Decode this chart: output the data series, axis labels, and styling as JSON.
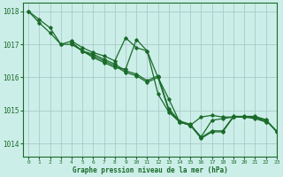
{
  "title": "Graphe pression niveau de la mer (hPa)",
  "background_color": "#cceee8",
  "grid_color": "#aaccc8",
  "line_color": "#1a6b2a",
  "xlim": [
    -0.5,
    23
  ],
  "ylim": [
    1013.6,
    1018.25
  ],
  "yticks": [
    1014,
    1015,
    1016,
    1017,
    1018
  ],
  "xticks": [
    0,
    1,
    2,
    3,
    4,
    5,
    6,
    7,
    8,
    9,
    10,
    11,
    12,
    13,
    14,
    15,
    16,
    17,
    18,
    19,
    20,
    21,
    22,
    23
  ],
  "series": [
    {
      "x": [
        0,
        1,
        2,
        3,
        4,
        5,
        6,
        7,
        8,
        9,
        10,
        11,
        12,
        13,
        14,
        15,
        16,
        17,
        18,
        19,
        20,
        21,
        22
      ],
      "y": [
        1018.0,
        1017.75,
        1017.5,
        1017.0,
        1017.1,
        1016.9,
        1016.75,
        1016.65,
        1016.5,
        1017.2,
        1016.9,
        1016.8,
        1015.5,
        1014.95,
        1014.65,
        1014.55,
        1014.8,
        1014.85,
        1014.8,
        1014.8,
        1014.8,
        1014.75,
        1014.65
      ]
    },
    {
      "x": [
        0,
        1,
        2,
        3,
        4,
        5,
        6,
        7,
        8,
        9,
        10,
        11,
        12,
        13,
        14,
        15,
        16,
        17,
        18,
        19,
        20,
        21,
        22
      ],
      "y": [
        1018.0,
        1017.65,
        1017.35,
        1017.0,
        1017.0,
        1016.8,
        1016.6,
        1016.45,
        1016.3,
        1016.25,
        1017.15,
        1016.8,
        1016.0,
        1015.35,
        1014.65,
        1014.55,
        1014.2,
        1014.7,
        1014.75,
        1014.8,
        1014.8,
        1014.8,
        1014.65
      ]
    },
    {
      "x": [
        4,
        5,
        6,
        7,
        8,
        9,
        10,
        11,
        12,
        13,
        14,
        15,
        16,
        17,
        18,
        19,
        20,
        21,
        22,
        23
      ],
      "y": [
        1017.05,
        1016.8,
        1016.65,
        1016.5,
        1016.35,
        1016.15,
        1016.05,
        1015.85,
        1016.0,
        1015.0,
        1014.65,
        1014.55,
        1014.15,
        1014.35,
        1014.35,
        1014.8,
        1014.8,
        1014.8,
        1014.7,
        1014.35
      ]
    },
    {
      "x": [
        4,
        5,
        6,
        7,
        8,
        9,
        10,
        11,
        12,
        13,
        14,
        15,
        16,
        17,
        18,
        19,
        20,
        21,
        22,
        23
      ],
      "y": [
        1017.05,
        1016.8,
        1016.7,
        1016.55,
        1016.4,
        1016.2,
        1016.1,
        1015.9,
        1016.05,
        1015.05,
        1014.68,
        1014.58,
        1014.18,
        1014.38,
        1014.38,
        1014.82,
        1014.82,
        1014.82,
        1014.72,
        1014.38
      ]
    }
  ]
}
